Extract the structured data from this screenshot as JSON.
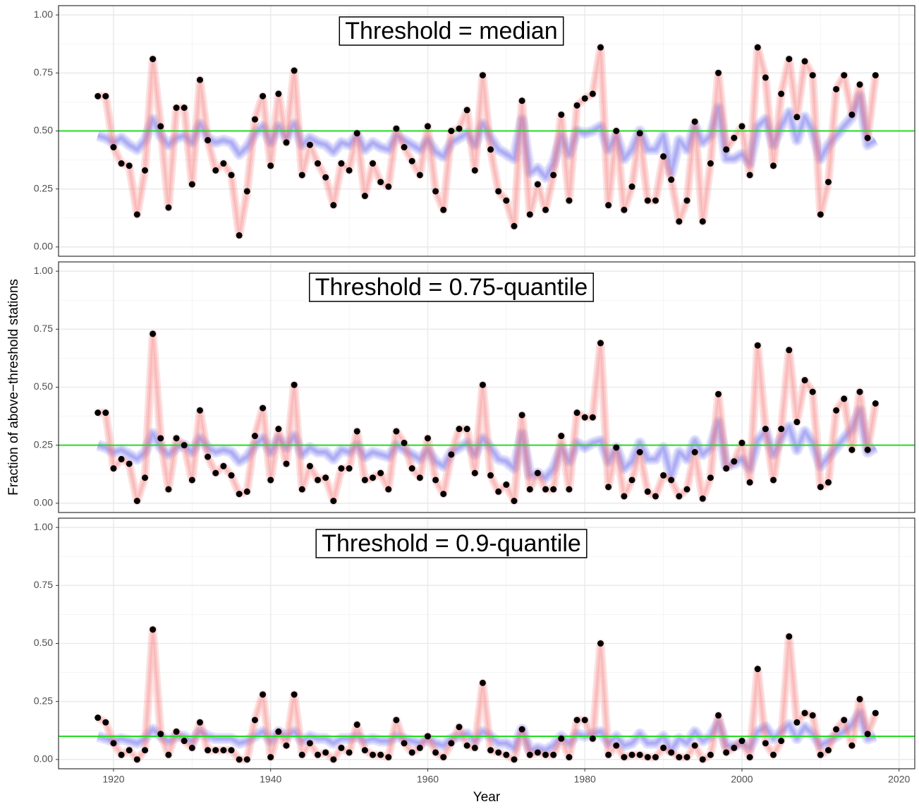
{
  "chart_data": [
    {
      "type": "line",
      "annotation": "Threshold = median",
      "x": [
        1918,
        1919,
        1920,
        1921,
        1922,
        1923,
        1924,
        1925,
        1926,
        1927,
        1928,
        1929,
        1930,
        1931,
        1932,
        1933,
        1934,
        1935,
        1936,
        1937,
        1938,
        1939,
        1940,
        1941,
        1942,
        1943,
        1944,
        1945,
        1946,
        1947,
        1948,
        1949,
        1950,
        1951,
        1952,
        1953,
        1954,
        1955,
        1956,
        1957,
        1958,
        1959,
        1960,
        1961,
        1962,
        1963,
        1964,
        1965,
        1966,
        1967,
        1968,
        1969,
        1970,
        1971,
        1972,
        1973,
        1974,
        1975,
        1976,
        1977,
        1978,
        1979,
        1980,
        1981,
        1982,
        1983,
        1984,
        1985,
        1986,
        1987,
        1988,
        1989,
        1990,
        1991,
        1992,
        1993,
        1994,
        1995,
        1996,
        1997,
        1998,
        1999,
        2000,
        2001,
        2002,
        2003,
        2004,
        2005,
        2006,
        2007,
        2008,
        2009,
        2010,
        2011,
        2012,
        2013,
        2014,
        2015,
        2016,
        2017
      ],
      "values": [
        0.65,
        0.65,
        0.43,
        0.36,
        0.35,
        0.14,
        0.33,
        0.81,
        0.52,
        0.17,
        0.6,
        0.6,
        0.27,
        0.72,
        0.46,
        0.33,
        0.36,
        0.31,
        0.05,
        0.24,
        0.55,
        0.65,
        0.35,
        0.66,
        0.45,
        0.76,
        0.31,
        0.44,
        0.36,
        0.3,
        0.18,
        0.36,
        0.33,
        0.49,
        0.22,
        0.36,
        0.28,
        0.26,
        0.51,
        0.43,
        0.37,
        0.31,
        0.52,
        0.24,
        0.16,
        0.5,
        0.51,
        0.59,
        0.33,
        0.74,
        0.42,
        0.24,
        0.2,
        0.09,
        0.63,
        0.14,
        0.27,
        0.16,
        0.31,
        0.57,
        0.2,
        0.61,
        0.64,
        0.66,
        0.86,
        0.18,
        0.5,
        0.16,
        0.26,
        0.49,
        0.2,
        0.2,
        0.39,
        0.29,
        0.11,
        0.2,
        0.54,
        0.11,
        0.36,
        0.75,
        0.42,
        0.47,
        0.52,
        0.31,
        0.86,
        0.73,
        0.35,
        0.66,
        0.81,
        0.56,
        0.8,
        0.74,
        0.14,
        0.28,
        0.68,
        0.74,
        0.57,
        0.7,
        0.47,
        0.74
      ],
      "band_values": [
        0.48,
        0.47,
        0.45,
        0.47,
        0.44,
        0.42,
        0.46,
        0.55,
        0.48,
        0.44,
        0.47,
        0.48,
        0.45,
        0.53,
        0.47,
        0.45,
        0.46,
        0.45,
        0.4,
        0.43,
        0.49,
        0.52,
        0.45,
        0.52,
        0.47,
        0.53,
        0.44,
        0.47,
        0.45,
        0.44,
        0.41,
        0.45,
        0.44,
        0.48,
        0.42,
        0.45,
        0.43,
        0.42,
        0.48,
        0.46,
        0.44,
        0.42,
        0.46,
        0.41,
        0.39,
        0.45,
        0.47,
        0.49,
        0.44,
        0.53,
        0.47,
        0.42,
        0.4,
        0.38,
        0.55,
        0.32,
        0.34,
        0.3,
        0.36,
        0.48,
        0.4,
        0.5,
        0.49,
        0.5,
        0.52,
        0.42,
        0.48,
        0.38,
        0.42,
        0.5,
        0.42,
        0.42,
        0.48,
        0.32,
        0.46,
        0.42,
        0.52,
        0.45,
        0.48,
        0.6,
        0.38,
        0.38,
        0.4,
        0.36,
        0.52,
        0.55,
        0.44,
        0.52,
        0.58,
        0.46,
        0.56,
        0.5,
        0.38,
        0.44,
        0.48,
        0.52,
        0.56,
        0.65,
        0.44,
        0.46
      ],
      "hline": 0.5,
      "point_color": "#000000",
      "line_color": "#f87878",
      "band_color": "#6a6af0",
      "hline_color": "#22dd22",
      "xlim": [
        1913,
        2022
      ],
      "xticks": [
        1920,
        1940,
        1960,
        1980,
        2000,
        2020
      ],
      "ylim": [
        -0.04,
        1.04
      ],
      "yticks": [
        {
          "value": 0,
          "label": "0.00"
        },
        {
          "value": 0.25,
          "label": "0.25"
        },
        {
          "value": 0.5,
          "label": "0.50"
        },
        {
          "value": 0.75,
          "label": "0.75"
        },
        {
          "value": 1,
          "label": "1.00"
        }
      ],
      "grid": true
    },
    {
      "type": "line",
      "annotation": "Threshold = 0.75-quantile",
      "ylabel": "Fraction of above−threshold stations",
      "x": [
        1918,
        1919,
        1920,
        1921,
        1922,
        1923,
        1924,
        1925,
        1926,
        1927,
        1928,
        1929,
        1930,
        1931,
        1932,
        1933,
        1934,
        1935,
        1936,
        1937,
        1938,
        1939,
        1940,
        1941,
        1942,
        1943,
        1944,
        1945,
        1946,
        1947,
        1948,
        1949,
        1950,
        1951,
        1952,
        1953,
        1954,
        1955,
        1956,
        1957,
        1958,
        1959,
        1960,
        1961,
        1962,
        1963,
        1964,
        1965,
        1966,
        1967,
        1968,
        1969,
        1970,
        1971,
        1972,
        1973,
        1974,
        1975,
        1976,
        1977,
        1978,
        1979,
        1980,
        1981,
        1982,
        1983,
        1984,
        1985,
        1986,
        1987,
        1988,
        1989,
        1990,
        1991,
        1992,
        1993,
        1994,
        1995,
        1996,
        1997,
        1998,
        1999,
        2000,
        2001,
        2002,
        2003,
        2004,
        2005,
        2006,
        2007,
        2008,
        2009,
        2010,
        2011,
        2012,
        2013,
        2014,
        2015,
        2016,
        2017
      ],
      "values": [
        0.39,
        0.39,
        0.15,
        0.19,
        0.17,
        0.01,
        0.11,
        0.73,
        0.28,
        0.06,
        0.28,
        0.25,
        0.1,
        0.4,
        0.2,
        0.13,
        0.16,
        0.12,
        0.04,
        0.05,
        0.29,
        0.41,
        0.1,
        0.32,
        0.17,
        0.51,
        0.06,
        0.16,
        0.1,
        0.11,
        0.01,
        0.15,
        0.15,
        0.31,
        0.1,
        0.11,
        0.13,
        0.06,
        0.31,
        0.26,
        0.15,
        0.11,
        0.28,
        0.1,
        0.04,
        0.21,
        0.32,
        0.32,
        0.13,
        0.51,
        0.12,
        0.05,
        0.08,
        0.01,
        0.38,
        0.06,
        0.13,
        0.06,
        0.06,
        0.29,
        0.06,
        0.39,
        0.37,
        0.37,
        0.69,
        0.07,
        0.24,
        0.03,
        0.1,
        0.22,
        0.05,
        0.03,
        0.12,
        0.1,
        0.03,
        0.06,
        0.22,
        0.02,
        0.11,
        0.47,
        0.15,
        0.18,
        0.26,
        0.09,
        0.68,
        0.32,
        0.1,
        0.32,
        0.66,
        0.35,
        0.53,
        0.48,
        0.07,
        0.09,
        0.4,
        0.45,
        0.23,
        0.48,
        0.23,
        0.43
      ],
      "band_values": [
        0.25,
        0.24,
        0.22,
        0.23,
        0.21,
        0.19,
        0.22,
        0.3,
        0.24,
        0.21,
        0.24,
        0.25,
        0.22,
        0.28,
        0.24,
        0.22,
        0.23,
        0.22,
        0.18,
        0.2,
        0.25,
        0.28,
        0.22,
        0.28,
        0.24,
        0.29,
        0.21,
        0.24,
        0.22,
        0.22,
        0.19,
        0.23,
        0.22,
        0.25,
        0.2,
        0.22,
        0.21,
        0.2,
        0.25,
        0.23,
        0.21,
        0.19,
        0.23,
        0.18,
        0.16,
        0.22,
        0.24,
        0.26,
        0.21,
        0.28,
        0.24,
        0.19,
        0.18,
        0.15,
        0.3,
        0.12,
        0.13,
        0.11,
        0.15,
        0.24,
        0.18,
        0.26,
        0.24,
        0.26,
        0.27,
        0.18,
        0.24,
        0.15,
        0.18,
        0.26,
        0.19,
        0.19,
        0.24,
        0.12,
        0.22,
        0.19,
        0.27,
        0.21,
        0.24,
        0.35,
        0.16,
        0.17,
        0.19,
        0.15,
        0.27,
        0.31,
        0.21,
        0.28,
        0.33,
        0.23,
        0.31,
        0.26,
        0.16,
        0.2,
        0.24,
        0.28,
        0.32,
        0.4,
        0.22,
        0.24
      ],
      "hline": 0.25,
      "point_color": "#000000",
      "line_color": "#f87878",
      "band_color": "#6a6af0",
      "hline_color": "#22dd22",
      "xlim": [
        1913,
        2022
      ],
      "xticks": [
        1920,
        1940,
        1960,
        1980,
        2000,
        2020
      ],
      "ylim": [
        -0.04,
        1.04
      ],
      "yticks": [
        {
          "value": 0,
          "label": "0.00"
        },
        {
          "value": 0.25,
          "label": "0.25"
        },
        {
          "value": 0.5,
          "label": "0.50"
        },
        {
          "value": 0.75,
          "label": "0.75"
        },
        {
          "value": 1,
          "label": "1.00"
        }
      ],
      "grid": true
    },
    {
      "type": "line",
      "annotation": "Threshold = 0.9-quantile",
      "xlabel": "Year",
      "x": [
        1918,
        1919,
        1920,
        1921,
        1922,
        1923,
        1924,
        1925,
        1926,
        1927,
        1928,
        1929,
        1930,
        1931,
        1932,
        1933,
        1934,
        1935,
        1936,
        1937,
        1938,
        1939,
        1940,
        1941,
        1942,
        1943,
        1944,
        1945,
        1946,
        1947,
        1948,
        1949,
        1950,
        1951,
        1952,
        1953,
        1954,
        1955,
        1956,
        1957,
        1958,
        1959,
        1960,
        1961,
        1962,
        1963,
        1964,
        1965,
        1966,
        1967,
        1968,
        1969,
        1970,
        1971,
        1972,
        1973,
        1974,
        1975,
        1976,
        1977,
        1978,
        1979,
        1980,
        1981,
        1982,
        1983,
        1984,
        1985,
        1986,
        1987,
        1988,
        1989,
        1990,
        1991,
        1992,
        1993,
        1994,
        1995,
        1996,
        1997,
        1998,
        1999,
        2000,
        2001,
        2002,
        2003,
        2004,
        2005,
        2006,
        2007,
        2008,
        2009,
        2010,
        2011,
        2012,
        2013,
        2014,
        2015,
        2016,
        2017
      ],
      "values": [
        0.18,
        0.16,
        0.07,
        0.02,
        0.04,
        0.0,
        0.04,
        0.56,
        0.11,
        0.02,
        0.12,
        0.08,
        0.05,
        0.16,
        0.04,
        0.04,
        0.04,
        0.04,
        0.0,
        0.0,
        0.17,
        0.28,
        0.01,
        0.12,
        0.06,
        0.28,
        0.02,
        0.07,
        0.02,
        0.03,
        0.0,
        0.05,
        0.03,
        0.15,
        0.04,
        0.02,
        0.02,
        0.01,
        0.17,
        0.07,
        0.03,
        0.05,
        0.1,
        0.03,
        0.01,
        0.07,
        0.14,
        0.06,
        0.05,
        0.33,
        0.04,
        0.03,
        0.02,
        0.0,
        0.13,
        0.02,
        0.03,
        0.02,
        0.02,
        0.09,
        0.01,
        0.17,
        0.17,
        0.09,
        0.5,
        0.02,
        0.06,
        0.01,
        0.02,
        0.02,
        0.01,
        0.01,
        0.05,
        0.03,
        0.01,
        0.01,
        0.06,
        0.0,
        0.02,
        0.19,
        0.03,
        0.05,
        0.08,
        0.01,
        0.39,
        0.07,
        0.02,
        0.08,
        0.53,
        0.16,
        0.2,
        0.19,
        0.02,
        0.04,
        0.13,
        0.17,
        0.06,
        0.26,
        0.11,
        0.2
      ],
      "band_values": [
        0.1,
        0.09,
        0.08,
        0.09,
        0.08,
        0.07,
        0.09,
        0.13,
        0.1,
        0.08,
        0.1,
        0.1,
        0.08,
        0.12,
        0.1,
        0.09,
        0.09,
        0.09,
        0.07,
        0.08,
        0.1,
        0.12,
        0.08,
        0.12,
        0.1,
        0.12,
        0.08,
        0.1,
        0.09,
        0.09,
        0.07,
        0.09,
        0.09,
        0.1,
        0.08,
        0.09,
        0.08,
        0.08,
        0.1,
        0.09,
        0.08,
        0.07,
        0.09,
        0.07,
        0.06,
        0.09,
        0.1,
        0.11,
        0.08,
        0.12,
        0.1,
        0.07,
        0.07,
        0.05,
        0.13,
        0.04,
        0.05,
        0.04,
        0.06,
        0.1,
        0.07,
        0.11,
        0.1,
        0.11,
        0.12,
        0.07,
        0.1,
        0.06,
        0.07,
        0.11,
        0.07,
        0.07,
        0.1,
        0.04,
        0.09,
        0.07,
        0.12,
        0.08,
        0.1,
        0.16,
        0.06,
        0.06,
        0.07,
        0.05,
        0.12,
        0.14,
        0.09,
        0.12,
        0.15,
        0.09,
        0.14,
        0.11,
        0.06,
        0.08,
        0.1,
        0.12,
        0.15,
        0.2,
        0.09,
        0.1
      ],
      "hline": 0.1,
      "point_color": "#000000",
      "line_color": "#f87878",
      "band_color": "#6a6af0",
      "hline_color": "#22dd22",
      "xlim": [
        1913,
        2022
      ],
      "xticks": [
        {
          "value": 1920,
          "label": "1920"
        },
        {
          "value": 1940,
          "label": "1940"
        },
        {
          "value": 1960,
          "label": "1960"
        },
        {
          "value": 1980,
          "label": "1980"
        },
        {
          "value": 2000,
          "label": "2000"
        },
        {
          "value": 2020,
          "label": "2020"
        }
      ],
      "ylim": [
        -0.04,
        1.04
      ],
      "yticks": [
        {
          "value": 0,
          "label": "0.00"
        },
        {
          "value": 0.25,
          "label": "0.25"
        },
        {
          "value": 0.5,
          "label": "0.50"
        },
        {
          "value": 0.75,
          "label": "0.75"
        },
        {
          "value": 1,
          "label": "1.00"
        }
      ],
      "grid": true
    }
  ]
}
